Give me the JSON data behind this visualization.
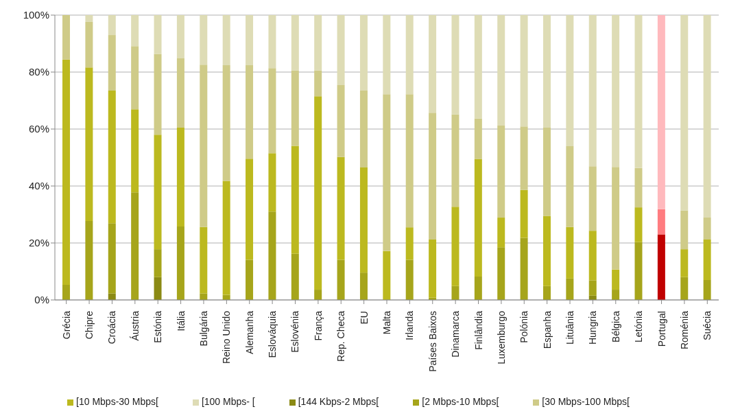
{
  "chart_data": {
    "type": "bar",
    "stacked": true,
    "categories": [
      "Grécia",
      "Chipre",
      "Croácia",
      "Áustria",
      "Estónia",
      "Itália",
      "Bulgária",
      "Reino Unido",
      "Alemanha",
      "Eslováquia",
      "Eslovénia",
      "França",
      "Rep. Checa",
      "EU",
      "Malta",
      "Irlanda",
      "Países Baixos",
      "Dinamarca",
      "Finlândia",
      "Luxemburgo",
      "Polónia",
      "Espanha",
      "Lituânia",
      "Hungria",
      "Bélgica",
      "Letónia",
      "Portugal",
      "Roménia",
      "Suécia"
    ],
    "series": [
      {
        "name": "[144 Kbps-2 Mbps[",
        "color": "#8b8a14",
        "values": [
          0,
          0,
          2.3,
          0,
          8.0,
          null,
          0,
          0,
          0,
          0,
          0,
          0,
          0,
          0,
          0,
          0,
          0,
          0,
          0,
          0,
          0,
          0,
          0,
          1.5,
          0,
          0,
          0,
          0,
          0
        ],
        "colors": [
          "#8b8a14",
          "#8b8a14",
          "#8b8a14",
          "#8b8a14",
          "#8b8a14",
          "#8b8a14",
          "#8b8a14",
          "#8b8a14",
          "#8b8a14",
          "#8b8a14",
          "#8b8a14",
          "#8b8a14",
          "#8b8a14",
          "#8b8a14",
          "#8b8a14",
          "#8b8a14",
          "#8b8a14",
          "#8b8a14",
          "#8b8a14",
          "#8b8a14",
          "#8b8a14",
          "#8b8a14",
          "#8b8a14",
          "#8b8a14",
          "#8b8a14",
          "#8b8a14",
          "#a00000",
          "#8b8a14",
          "#8b8a14"
        ]
      },
      {
        "name": "[2 Mbps-10 Mbps[",
        "color": "#a6a51b",
        "values": [
          5.3,
          27.7,
          24.6,
          37.8,
          9.8,
          25.8,
          2.3,
          1.8,
          14.1,
          31.0,
          16.2,
          3.6,
          14.1,
          9.6,
          0,
          14.1,
          0.8,
          4.9,
          8.2,
          18.5,
          21.8,
          4.9,
          7.5,
          5.4,
          3.6,
          20.3,
          23.0,
          8.0,
          7.0
        ],
        "colors": [
          "#a6a51b",
          "#a6a51b",
          "#a6a51b",
          "#a6a51b",
          "#a6a51b",
          "#a6a51b",
          "#a6a51b",
          "#a6a51b",
          "#a6a51b",
          "#a6a51b",
          "#a6a51b",
          "#a6a51b",
          "#a6a51b",
          "#a6a51b",
          "#a6a51b",
          "#a6a51b",
          "#a6a51b",
          "#a6a51b",
          "#a6a51b",
          "#a6a51b",
          "#a6a51b",
          "#a6a51b",
          "#a6a51b",
          "#a6a51b",
          "#a6a51b",
          "#a6a51b",
          "#c00000",
          "#a6a51b",
          "#a6a51b"
        ]
      },
      {
        "name": "[10 Mbps-30 Mbps[",
        "color": "#bcb91f",
        "values": [
          79.1,
          53.9,
          46.6,
          29.1,
          40.2,
          34.7,
          23.3,
          40.0,
          35.5,
          20.5,
          37.9,
          67.9,
          36.1,
          36.9,
          17.2,
          11.4,
          20.4,
          27.8,
          41.3,
          10.4,
          16.8,
          24.6,
          18.1,
          17.4,
          7.1,
          12.2,
          8.9,
          9.8,
          14.2
        ],
        "colors": [
          "#bcb91f",
          "#bcb91f",
          "#bcb91f",
          "#bcb91f",
          "#bcb91f",
          "#bcb91f",
          "#bcb91f",
          "#bcb91f",
          "#bcb91f",
          "#bcb91f",
          "#bcb91f",
          "#bcb91f",
          "#bcb91f",
          "#bcb91f",
          "#bcb91f",
          "#bcb91f",
          "#bcb91f",
          "#bcb91f",
          "#bcb91f",
          "#bcb91f",
          "#bcb91f",
          "#bcb91f",
          "#bcb91f",
          "#bcb91f",
          "#bcb91f",
          "#bcb91f",
          "#ff7c80",
          "#bcb91f",
          "#bcb91f"
        ]
      },
      {
        "name": "[30 Mbps-100 Mbps[",
        "color": "#cfcb88",
        "values": [
          15.6,
          16.0,
          19.5,
          22.2,
          28.4,
          24.3,
          57.0,
          40.6,
          32.8,
          29.9,
          26.5,
          9.1,
          25.2,
          27.0,
          55.0,
          46.7,
          44.5,
          32.4,
          14.2,
          32.3,
          22.3,
          31.0,
          28.4,
          22.6,
          36.0,
          13.8,
          0,
          13.6,
          7.7
        ],
        "colors": [
          "#cfcb88",
          "#cfcb88",
          "#cfcb88",
          "#cfcb88",
          "#cfcb88",
          "#cfcb88",
          "#cfcb88",
          "#cfcb88",
          "#cfcb88",
          "#cfcb88",
          "#cfcb88",
          "#cfcb88",
          "#cfcb88",
          "#cfcb88",
          "#cfcb88",
          "#cfcb88",
          "#cfcb88",
          "#cfcb88",
          "#cfcb88",
          "#cfcb88",
          "#cfcb88",
          "#cfcb88",
          "#cfcb88",
          "#cfcb88",
          "#cfcb88",
          "#cfcb88",
          "#ff9a9e",
          "#cfcb88",
          "#cfcb88"
        ]
      },
      {
        "name": "[100 Mbps- [",
        "color": "#dedcb5",
        "values": [
          0,
          2.4,
          7.0,
          10.9,
          13.6,
          15.2,
          17.4,
          17.6,
          17.6,
          18.6,
          19.4,
          19.4,
          24.6,
          26.5,
          27.8,
          27.8,
          34.3,
          34.9,
          36.3,
          38.8,
          39.1,
          39.5,
          46.0,
          53.1,
          53.3,
          53.7,
          68.1,
          68.6,
          71.1
        ],
        "colors": [
          "#dedcb5",
          "#dedcb5",
          "#dedcb5",
          "#dedcb5",
          "#dedcb5",
          "#dedcb5",
          "#dedcb5",
          "#dedcb5",
          "#dedcb5",
          "#dedcb5",
          "#dedcb5",
          "#dedcb5",
          "#dedcb5",
          "#dedcb5",
          "#dedcb5",
          "#dedcb5",
          "#dedcb5",
          "#dedcb5",
          "#dedcb5",
          "#dedcb5",
          "#dedcb5",
          "#dedcb5",
          "#dedcb5",
          "#dedcb5",
          "#dedcb5",
          "#dedcb5",
          "#ffb9bd",
          "#dedcb5",
          "#dedcb5"
        ]
      }
    ],
    "ylim": [
      0,
      100
    ],
    "yticks": [
      {
        "value": 0,
        "label": "0%"
      },
      {
        "value": 20,
        "label": "20%"
      },
      {
        "value": 40,
        "label": "40%"
      },
      {
        "value": 60,
        "label": "60%"
      },
      {
        "value": 80,
        "label": "80%"
      },
      {
        "value": 100,
        "label": "100%"
      }
    ],
    "grid": "y",
    "legend": "bottom"
  }
}
